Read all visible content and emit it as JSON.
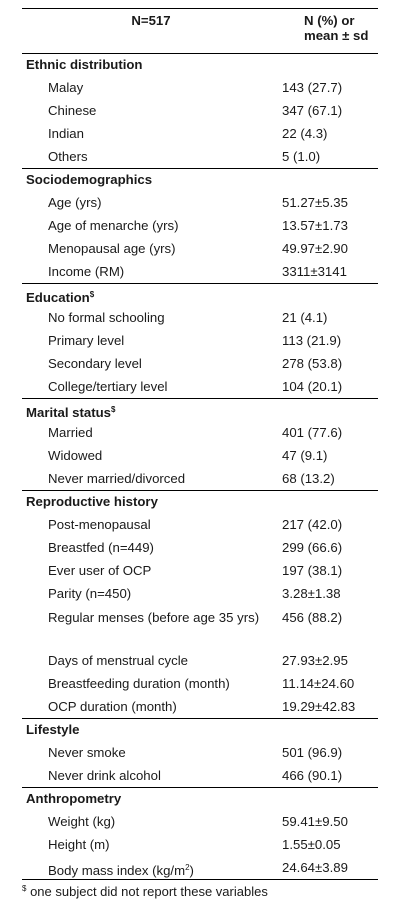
{
  "header": {
    "left": "N=517",
    "right_line1": "N (%) or",
    "right_line2": "mean ± sd"
  },
  "sections": {
    "ethnic": {
      "title": "Ethnic distribution",
      "rows": [
        {
          "label": "Malay",
          "value": "143 (27.7)"
        },
        {
          "label": "Chinese",
          "value": "347 (67.1)"
        },
        {
          "label": "Indian",
          "value": "22 (4.3)"
        },
        {
          "label": "Others",
          "value": "5 (1.0)"
        }
      ]
    },
    "socio": {
      "title": "Sociodemographics",
      "rows": [
        {
          "label": "Age (yrs)",
          "value": "51.27±5.35"
        },
        {
          "label": "Age of menarche (yrs)",
          "value": "13.57±1.73"
        },
        {
          "label": "Menopausal age (yrs)",
          "value": "49.97±2.90"
        },
        {
          "label": "Income (RM)",
          "value": "3311±3141"
        }
      ]
    },
    "education": {
      "title": "Education",
      "mark": "$",
      "rows": [
        {
          "label": "No formal schooling",
          "value": "21 (4.1)"
        },
        {
          "label": "Primary level",
          "value": "113 (21.9)"
        },
        {
          "label": "Secondary level",
          "value": "278 (53.8)"
        },
        {
          "label": "College/tertiary level",
          "value": "104 (20.1)"
        }
      ]
    },
    "marital": {
      "title": "Marital status",
      "mark": "$",
      "rows": [
        {
          "label": "Married",
          "value": "401 (77.6)"
        },
        {
          "label": "Widowed",
          "value": "47 (9.1)"
        },
        {
          "label": "Never married/divorced",
          "value": "68 (13.2)"
        }
      ]
    },
    "repro": {
      "title": "Reproductive history",
      "rows": [
        {
          "label": "Post-menopausal",
          "value": "217 (42.0)"
        },
        {
          "label": "Breastfed (n=449)",
          "value": "299 (66.6)"
        },
        {
          "label": "Ever user of OCP",
          "value": "197 (38.1)"
        },
        {
          "label": "Parity (n=450)",
          "value": "3.28±1.38"
        },
        {
          "label": "Regular menses (before age 35 yrs)",
          "value": "456 (88.2)"
        },
        {
          "label": "Days of menstrual cycle",
          "value": "27.93±2.95"
        },
        {
          "label": "Breastfeeding duration (month)",
          "value": "11.14±24.60"
        },
        {
          "label": "OCP duration (month)",
          "value": "19.29±42.83"
        }
      ]
    },
    "lifestyle": {
      "title": "Lifestyle",
      "rows": [
        {
          "label": "Never smoke",
          "value": "501 (96.9)"
        },
        {
          "label": "Never drink alcohol",
          "value": "466 (90.1)"
        }
      ]
    },
    "anthro": {
      "title": "Anthropometry",
      "rows": [
        {
          "label": "Weight (kg)",
          "value": "59.41±9.50"
        },
        {
          "label": "Height (m)",
          "value": "1.55±0.05"
        },
        {
          "label": "Body mass index (kg/m",
          "label_sup": "2",
          "label_after": ")",
          "value": "24.64±3.89"
        }
      ]
    }
  },
  "footnote": {
    "mark": "$",
    "text": " one subject did not report these variables"
  }
}
